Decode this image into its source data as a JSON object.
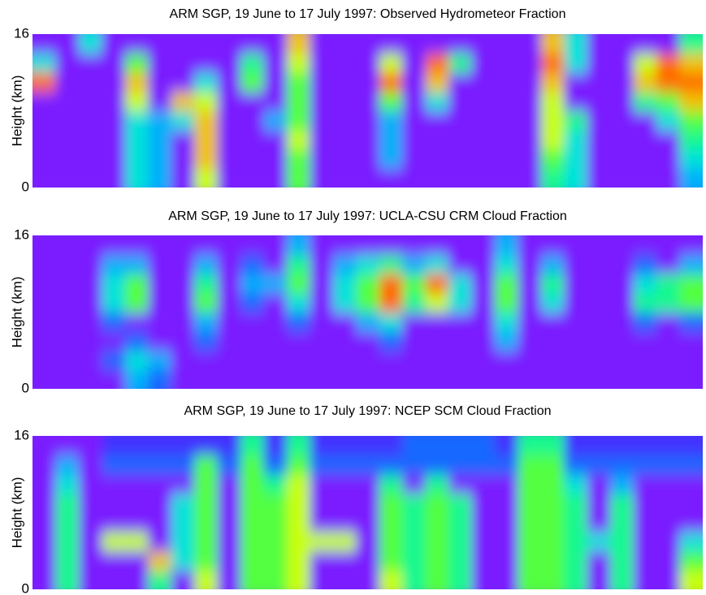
{
  "colormap": [
    "#7a1cff",
    "#2a3cff",
    "#00a8ff",
    "#00f0d0",
    "#30ff50",
    "#d8ff00",
    "#ff9a00",
    "#ff0000"
  ],
  "chart_data": [
    {
      "type": "heatmap",
      "title": "ARM SGP, 19 June to 17 July 1997:  Observed Hydrometeor Fraction",
      "ylabel": "Height (km)",
      "ylim": [
        0,
        16
      ],
      "yticks": [
        0,
        16
      ],
      "zlim": [
        0,
        1
      ],
      "z": [
        [
          0,
          0,
          0,
          0,
          0.4,
          0.3,
          0,
          0.7,
          0,
          0,
          0,
          0.6,
          0,
          0,
          0,
          0,
          0,
          0,
          0,
          0,
          0,
          0,
          0.5,
          0.4,
          0,
          0,
          0,
          0,
          0.3
        ],
        [
          0,
          0,
          0,
          0,
          0.4,
          0.3,
          0,
          0.8,
          0,
          0,
          0,
          0.6,
          0,
          0,
          0,
          0.3,
          0,
          0,
          0,
          0,
          0,
          0,
          0.6,
          0.4,
          0,
          0,
          0,
          0,
          0.4
        ],
        [
          0,
          0,
          0,
          0,
          0.4,
          0.3,
          0,
          0.8,
          0,
          0,
          0,
          0.7,
          0,
          0,
          0,
          0.3,
          0,
          0,
          0,
          0,
          0,
          0,
          0.7,
          0.4,
          0,
          0,
          0,
          0,
          0.5
        ],
        [
          0,
          0,
          0,
          0,
          0.4,
          0.3,
          0.4,
          0.8,
          0,
          0,
          0.3,
          0.6,
          0,
          0,
          0,
          0.3,
          0,
          0,
          0,
          0,
          0,
          0,
          0.7,
          0.5,
          0,
          0,
          0,
          0.4,
          0.6
        ],
        [
          0,
          0,
          0,
          0,
          0.7,
          0,
          0.8,
          0.7,
          0,
          0,
          0,
          0.6,
          0,
          0,
          0,
          0.6,
          0,
          0.4,
          0,
          0,
          0,
          0,
          0.7,
          0,
          0,
          0,
          0.5,
          0.6,
          0.8
        ],
        [
          0.9,
          0,
          0,
          0,
          0.8,
          0,
          0,
          0.4,
          0,
          0.6,
          0,
          0.6,
          0,
          0,
          0,
          0.9,
          0,
          0.8,
          0,
          0,
          0,
          0,
          0.8,
          0,
          0,
          0,
          0.8,
          0.9,
          0.9
        ],
        [
          0.4,
          0,
          0,
          0,
          0.6,
          0,
          0,
          0,
          0,
          0.5,
          0,
          0.7,
          0,
          0,
          0,
          0.7,
          0,
          0.9,
          0.5,
          0,
          0,
          0,
          0.9,
          0.4,
          0,
          0,
          0.7,
          0.9,
          0.8
        ],
        [
          0,
          0,
          0.4,
          0,
          0,
          0,
          0,
          0,
          0,
          0,
          0,
          0.8,
          0,
          0,
          0,
          0,
          0,
          0,
          0,
          0,
          0,
          0,
          0.8,
          0.4,
          0,
          0,
          0,
          0,
          0.5
        ]
      ]
    },
    {
      "type": "heatmap",
      "title": "ARM SGP, 19 June to 17 July 1997: UCLA-CSU CRM Cloud Fraction",
      "ylabel": "Height (km)",
      "ylim": [
        0,
        16
      ],
      "yticks": [
        0,
        16
      ],
      "zlim": [
        0,
        1
      ],
      "z": [
        [
          0,
          0,
          0,
          0,
          0.3,
          0.2,
          0,
          0,
          0,
          0,
          0,
          0,
          0,
          0,
          0,
          0,
          0,
          0,
          0,
          0,
          0,
          0,
          0,
          0,
          0,
          0,
          0,
          0,
          0
        ],
        [
          0,
          0,
          0,
          0.2,
          0.4,
          0.3,
          0,
          0,
          0,
          0,
          0,
          0,
          0,
          0,
          0,
          0,
          0,
          0,
          0,
          0,
          0,
          0,
          0,
          0,
          0,
          0,
          0,
          0,
          0
        ],
        [
          0,
          0,
          0,
          0,
          0.2,
          0,
          0,
          0.2,
          0,
          0,
          0,
          0,
          0,
          0,
          0,
          0.2,
          0,
          0,
          0,
          0,
          0.3,
          0,
          0,
          0,
          0,
          0,
          0,
          0,
          0
        ],
        [
          0,
          0,
          0,
          0.2,
          0,
          0,
          0,
          0.3,
          0,
          0,
          0,
          0.2,
          0,
          0,
          0.3,
          0.4,
          0,
          0,
          0,
          0,
          0.4,
          0,
          0,
          0,
          0,
          0,
          0.2,
          0,
          0.2
        ],
        [
          0,
          0,
          0,
          0.4,
          0.6,
          0,
          0,
          0.6,
          0,
          0.2,
          0,
          0.4,
          0,
          0.4,
          0.6,
          0.9,
          0.5,
          0.7,
          0.4,
          0,
          0.6,
          0,
          0.4,
          0,
          0,
          0,
          0.5,
          0.5,
          0.6
        ],
        [
          0,
          0,
          0,
          0.4,
          0.6,
          0,
          0,
          0.5,
          0,
          0.3,
          0.3,
          0.6,
          0,
          0.4,
          0.6,
          0.9,
          0.6,
          0.9,
          0.4,
          0,
          0.6,
          0,
          0.5,
          0,
          0,
          0,
          0.4,
          0.5,
          0.6
        ],
        [
          0,
          0,
          0,
          0.3,
          0.3,
          0,
          0,
          0.3,
          0,
          0.2,
          0,
          0.5,
          0,
          0.3,
          0.4,
          0.5,
          0.3,
          0.4,
          0,
          0,
          0.4,
          0,
          0.3,
          0,
          0,
          0,
          0.2,
          0,
          0.3
        ],
        [
          0,
          0,
          0,
          0,
          0,
          0,
          0,
          0,
          0,
          0,
          0,
          0.3,
          0,
          0,
          0,
          0,
          0,
          0,
          0,
          0,
          0.3,
          0,
          0,
          0,
          0,
          0,
          0,
          0,
          0
        ]
      ]
    },
    {
      "type": "heatmap",
      "title": "ARM SGP, 19 June to 17 July 1997: NCEP SCM Cloud Fraction",
      "ylabel": "Height (km)",
      "ylim": [
        0,
        16
      ],
      "yticks": [
        0,
        16
      ],
      "zlim": [
        0,
        1
      ],
      "z": [
        [
          0,
          0.5,
          0,
          0,
          0,
          0.5,
          0,
          0.7,
          0,
          0.6,
          0.6,
          0.7,
          0,
          0,
          0,
          0.7,
          0.5,
          0.6,
          0.5,
          0,
          0,
          0.6,
          0.6,
          0.5,
          0,
          0.5,
          0,
          0,
          0.7
        ],
        [
          0,
          0.5,
          0,
          0,
          0,
          0.8,
          0.4,
          0.6,
          0,
          0.6,
          0.6,
          0.7,
          0,
          0,
          0,
          0.6,
          0.5,
          0.6,
          0.5,
          0,
          0,
          0.6,
          0.6,
          0.5,
          0,
          0.5,
          0,
          0,
          0.6
        ],
        [
          0,
          0.5,
          0,
          0.7,
          0.7,
          0,
          0.4,
          0.6,
          0,
          0.6,
          0.6,
          0.7,
          0.7,
          0.7,
          0,
          0.6,
          0.5,
          0.6,
          0.5,
          0,
          0,
          0.6,
          0.6,
          0.5,
          0.4,
          0.5,
          0,
          0,
          0.4
        ],
        [
          0,
          0.5,
          0,
          0,
          0,
          0,
          0.4,
          0.6,
          0,
          0.6,
          0.6,
          0.7,
          0,
          0,
          0,
          0.6,
          0.5,
          0.6,
          0.5,
          0,
          0,
          0.6,
          0.6,
          0.5,
          0,
          0.5,
          0,
          0,
          0
        ],
        [
          0,
          0.5,
          0,
          0,
          0,
          0,
          0.4,
          0.6,
          0,
          0.6,
          0.6,
          0.7,
          0,
          0,
          0,
          0.6,
          0.5,
          0.6,
          0.5,
          0,
          0,
          0.6,
          0.6,
          0.5,
          0,
          0.5,
          0,
          0,
          0
        ],
        [
          0,
          0.4,
          0,
          0,
          0,
          0,
          0,
          0.6,
          0,
          0.6,
          0.5,
          0.7,
          0,
          0,
          0,
          0.5,
          0,
          0.5,
          0,
          0,
          0,
          0.6,
          0.6,
          0.4,
          0,
          0.3,
          0,
          0,
          0
        ],
        [
          0,
          0.3,
          0,
          0.2,
          0.2,
          0.2,
          0.2,
          0.6,
          0.2,
          0.6,
          0.2,
          0.6,
          0.2,
          0.2,
          0.2,
          0.2,
          0.2,
          0.2,
          0.2,
          0.2,
          0.2,
          0.6,
          0.6,
          0.2,
          0.2,
          0.2,
          0.2,
          0.2,
          0.2
        ],
        [
          0,
          0,
          0,
          0.1,
          0.1,
          0.1,
          0.1,
          0.1,
          0.1,
          0.5,
          0.1,
          0.5,
          0.1,
          0.1,
          0.1,
          0.1,
          0.2,
          0.2,
          0.2,
          0.2,
          0.1,
          0.5,
          0.5,
          0.1,
          0.1,
          0.1,
          0.1,
          0.1,
          0.1
        ]
      ]
    }
  ]
}
